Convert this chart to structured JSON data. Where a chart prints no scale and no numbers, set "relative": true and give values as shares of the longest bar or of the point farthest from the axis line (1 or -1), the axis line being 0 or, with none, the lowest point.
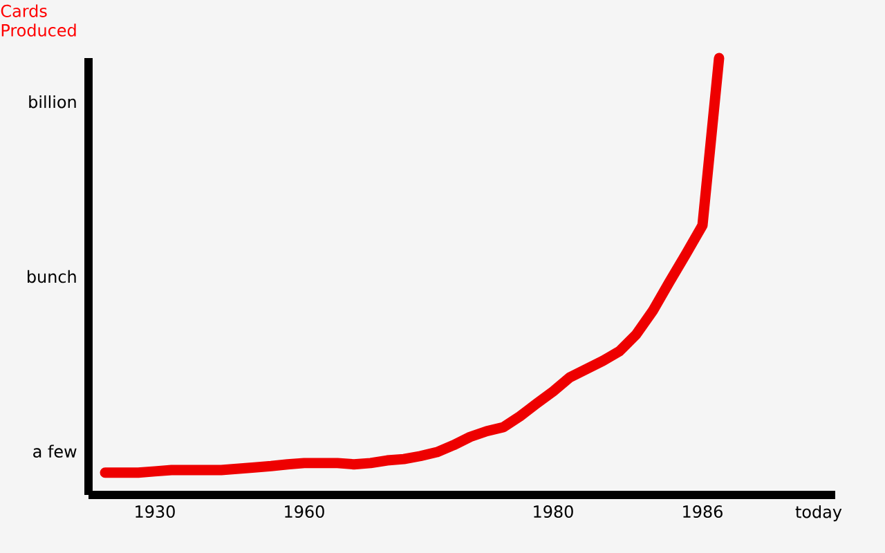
{
  "chart_data": {
    "type": "line",
    "relative": true,
    "ylabel": "Cards Produced",
    "categories": [
      null,
      null,
      null,
      null,
      "1930",
      null,
      null,
      null,
      null,
      null,
      null,
      null,
      null,
      "1960",
      null,
      null,
      null,
      null,
      null,
      null,
      null,
      null,
      null,
      null,
      null,
      null,
      null,
      null,
      "1980",
      null,
      null,
      null,
      null,
      null,
      null,
      null,
      null,
      "1986",
      null,
      null,
      null,
      null,
      null,
      null,
      "today",
      null
    ],
    "series": [
      {
        "color": "#ee0000",
        "values": [
          null,
          0.051,
          0.051,
          0.051,
          0.054,
          0.057,
          0.057,
          0.057,
          0.057,
          0.06,
          0.063,
          0.066,
          0.07,
          0.073,
          0.073,
          0.073,
          0.07,
          0.073,
          0.079,
          0.082,
          0.089,
          0.098,
          0.114,
          0.133,
          0.146,
          0.155,
          0.18,
          0.209,
          0.237,
          0.269,
          0.288,
          0.307,
          0.329,
          0.367,
          0.421,
          0.487,
          0.551,
          0.617,
          1.0,
          null,
          null,
          null,
          null,
          null,
          null,
          null
        ]
      }
    ],
    "annotations": [
      "a few",
      "bunch",
      "billion"
    ]
  }
}
